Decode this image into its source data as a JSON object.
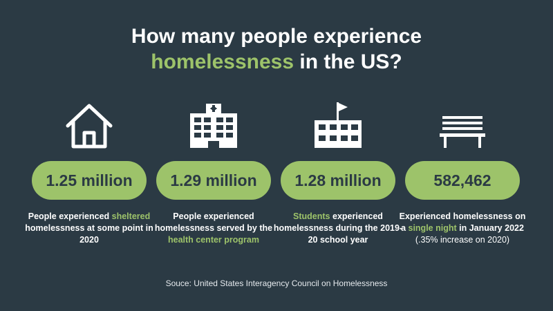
{
  "title": {
    "line1": "How many people experience",
    "line2_accent": "homelessness",
    "line2_rest": " in the US?"
  },
  "colors": {
    "background": "#2b3a44",
    "accent": "#9dc36a",
    "text": "#ffffff"
  },
  "stats": [
    {
      "icon": "house-icon",
      "value": "1.25 million",
      "desc_pre": "People experienced ",
      "desc_accent": "sheltered",
      "desc_post": " homelessness at some point in 2020",
      "desc_note": ""
    },
    {
      "icon": "hospital-icon",
      "value": "1.29 million",
      "desc_pre": "People experienced homelessness served by the ",
      "desc_accent": "health center program",
      "desc_post": "",
      "desc_note": ""
    },
    {
      "icon": "school-icon",
      "value": "1.28 million",
      "desc_pre": "",
      "desc_accent": "Students",
      "desc_post": " experienced homelessness during the 2019-20 school year",
      "desc_note": ""
    },
    {
      "icon": "bench-icon",
      "value": "582,462",
      "desc_pre": "Experienced homelessness on a ",
      "desc_accent": "single night",
      "desc_post": " in January 2022 ",
      "desc_note": "(.35% increase on 2020)"
    }
  ],
  "source": "Souce: United States Interagency Council on Homelessness"
}
